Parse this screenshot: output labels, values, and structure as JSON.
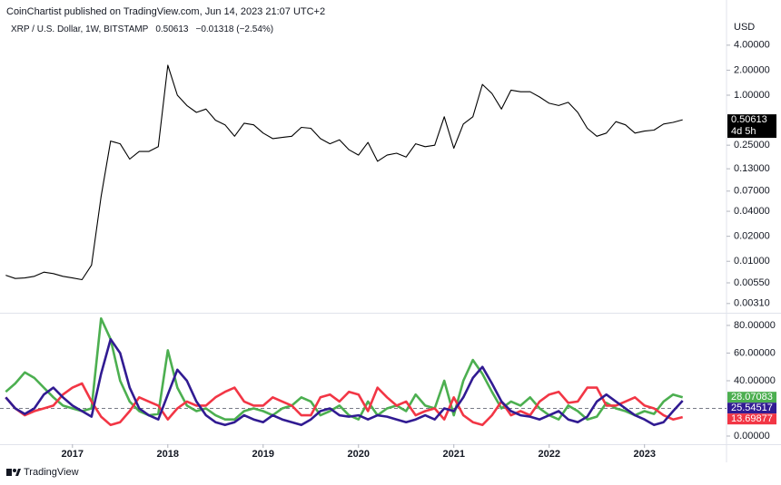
{
  "header": {
    "publisher": "CoinChartist published on TradingView.com, Jun 14, 2023 21:07 UTC+2",
    "footer": "TradingView"
  },
  "chart_data": [
    {
      "type": "line",
      "symbol": "XRP / U.S. Dollar, 1W, BITSTAMP",
      "change": "−0.01318 (−2.54%)",
      "unit": "USD",
      "last_label": "0.50613",
      "countdown": "4d 5h",
      "color": "#000000",
      "log": true,
      "xlim": [
        2016.24,
        2023.86
      ],
      "ylim": [
        0.0024,
        14
      ],
      "yticks": [
        {
          "value": 4,
          "label": "4.00000"
        },
        {
          "value": 2,
          "label": "2.00000"
        },
        {
          "value": 1,
          "label": "1.00000"
        },
        {
          "value": 0.25,
          "label": "0.25000"
        },
        {
          "value": 0.13,
          "label": "0.13000"
        },
        {
          "value": 0.07,
          "label": "0.07000"
        },
        {
          "value": 0.04,
          "label": "0.04000"
        },
        {
          "value": 0.02,
          "label": "0.02000"
        },
        {
          "value": 0.01,
          "label": "0.01000"
        },
        {
          "value": 0.0055,
          "label": "0.00550"
        },
        {
          "value": 0.0031,
          "label": "0.00310"
        }
      ],
      "x": [
        2016.3,
        2016.4,
        2016.5,
        2016.6,
        2016.7,
        2016.8,
        2016.9,
        2017.0,
        2017.1,
        2017.2,
        2017.3,
        2017.4,
        2017.5,
        2017.6,
        2017.7,
        2017.8,
        2017.9,
        2018.0,
        2018.1,
        2018.2,
        2018.3,
        2018.4,
        2018.5,
        2018.6,
        2018.7,
        2018.8,
        2018.9,
        2019.0,
        2019.1,
        2019.2,
        2019.3,
        2019.4,
        2019.5,
        2019.6,
        2019.7,
        2019.8,
        2019.9,
        2020.0,
        2020.1,
        2020.2,
        2020.3,
        2020.4,
        2020.5,
        2020.6,
        2020.7,
        2020.8,
        2020.9,
        2021.0,
        2021.1,
        2021.2,
        2021.3,
        2021.4,
        2021.5,
        2021.6,
        2021.7,
        2021.8,
        2021.9,
        2022.0,
        2022.1,
        2022.2,
        2022.3,
        2022.4,
        2022.5,
        2022.6,
        2022.7,
        2022.8,
        2022.9,
        2023.0,
        2023.1,
        2023.2,
        2023.3,
        2023.4
      ],
      "values": [
        0.0068,
        0.0062,
        0.0063,
        0.0066,
        0.0074,
        0.0071,
        0.0066,
        0.0063,
        0.006,
        0.009,
        0.06,
        0.28,
        0.26,
        0.17,
        0.21,
        0.21,
        0.24,
        2.3,
        1.0,
        0.75,
        0.62,
        0.68,
        0.5,
        0.44,
        0.32,
        0.46,
        0.44,
        0.35,
        0.3,
        0.31,
        0.32,
        0.41,
        0.4,
        0.3,
        0.26,
        0.29,
        0.22,
        0.19,
        0.27,
        0.16,
        0.19,
        0.2,
        0.18,
        0.26,
        0.24,
        0.25,
        0.55,
        0.23,
        0.45,
        0.55,
        1.35,
        1.05,
        0.68,
        1.15,
        1.1,
        1.1,
        0.95,
        0.8,
        0.75,
        0.82,
        0.62,
        0.4,
        0.32,
        0.35,
        0.48,
        0.44,
        0.35,
        0.37,
        0.38,
        0.45,
        0.47,
        0.50613
      ]
    },
    {
      "type": "line",
      "xlim": [
        2016.24,
        2023.86
      ],
      "ylim": [
        -5.9,
        88.5
      ],
      "hline": 20,
      "yticks": [
        {
          "value": 0,
          "label": "0.00000"
        },
        {
          "value": 40,
          "label": "40.00000"
        },
        {
          "value": 60,
          "label": "60.00000"
        },
        {
          "value": 80,
          "label": "80.00000"
        }
      ],
      "xticks": [
        2017,
        2018,
        2019,
        2020,
        2021,
        2022,
        2023
      ],
      "x": [
        2016.3,
        2016.4,
        2016.5,
        2016.6,
        2016.7,
        2016.8,
        2016.9,
        2017.0,
        2017.1,
        2017.2,
        2017.3,
        2017.4,
        2017.5,
        2017.6,
        2017.7,
        2017.8,
        2017.9,
        2018.0,
        2018.1,
        2018.2,
        2018.3,
        2018.4,
        2018.5,
        2018.6,
        2018.7,
        2018.8,
        2018.9,
        2019.0,
        2019.1,
        2019.2,
        2019.3,
        2019.4,
        2019.5,
        2019.6,
        2019.7,
        2019.8,
        2019.9,
        2020.0,
        2020.1,
        2020.2,
        2020.3,
        2020.4,
        2020.5,
        2020.6,
        2020.7,
        2020.8,
        2020.9,
        2021.0,
        2021.1,
        2021.2,
        2021.3,
        2021.4,
        2021.5,
        2021.6,
        2021.7,
        2021.8,
        2021.9,
        2022.0,
        2022.1,
        2022.2,
        2022.3,
        2022.4,
        2022.5,
        2022.6,
        2022.7,
        2022.8,
        2022.9,
        2023.0,
        2023.1,
        2023.2,
        2023.3,
        2023.4
      ],
      "series": [
        {
          "color": "#4caf50",
          "last_label": "28.07083",
          "values": [
            32,
            38,
            46,
            42,
            35,
            28,
            22,
            20,
            18,
            20,
            85,
            70,
            40,
            25,
            18,
            15,
            16,
            62,
            35,
            22,
            18,
            20,
            15,
            12,
            12,
            18,
            20,
            18,
            15,
            20,
            22,
            28,
            25,
            15,
            18,
            22,
            15,
            12,
            25,
            15,
            20,
            22,
            18,
            30,
            22,
            20,
            40,
            15,
            40,
            55,
            45,
            32,
            20,
            25,
            22,
            28,
            20,
            15,
            12,
            22,
            18,
            12,
            14,
            24,
            20,
            18,
            15,
            18,
            16,
            25,
            30,
            28.07083
          ]
        },
        {
          "color": "#f23645",
          "last_label": "13.69877",
          "values": [
            28,
            20,
            15,
            18,
            20,
            22,
            30,
            35,
            38,
            25,
            14,
            8,
            10,
            18,
            28,
            25,
            22,
            12,
            20,
            25,
            22,
            22,
            28,
            32,
            35,
            25,
            22,
            22,
            28,
            25,
            22,
            15,
            15,
            28,
            30,
            25,
            32,
            30,
            18,
            35,
            28,
            22,
            25,
            15,
            18,
            20,
            12,
            28,
            15,
            10,
            8,
            15,
            25,
            15,
            18,
            15,
            25,
            30,
            32,
            24,
            25,
            35,
            35,
            22,
            22,
            25,
            28,
            22,
            20,
            15,
            12,
            13.69877
          ]
        },
        {
          "color": "#311b92",
          "last_label": "25.54517",
          "values": [
            28,
            20,
            16,
            20,
            30,
            35,
            28,
            22,
            18,
            14,
            45,
            70,
            60,
            35,
            20,
            15,
            12,
            30,
            48,
            40,
            25,
            15,
            10,
            8,
            10,
            15,
            12,
            10,
            15,
            12,
            10,
            8,
            12,
            18,
            20,
            15,
            14,
            15,
            12,
            15,
            14,
            12,
            10,
            12,
            15,
            12,
            20,
            18,
            28,
            42,
            50,
            38,
            25,
            18,
            15,
            14,
            12,
            15,
            18,
            12,
            10,
            14,
            25,
            30,
            25,
            20,
            15,
            12,
            8,
            10,
            18,
            25.54517
          ]
        }
      ]
    }
  ]
}
